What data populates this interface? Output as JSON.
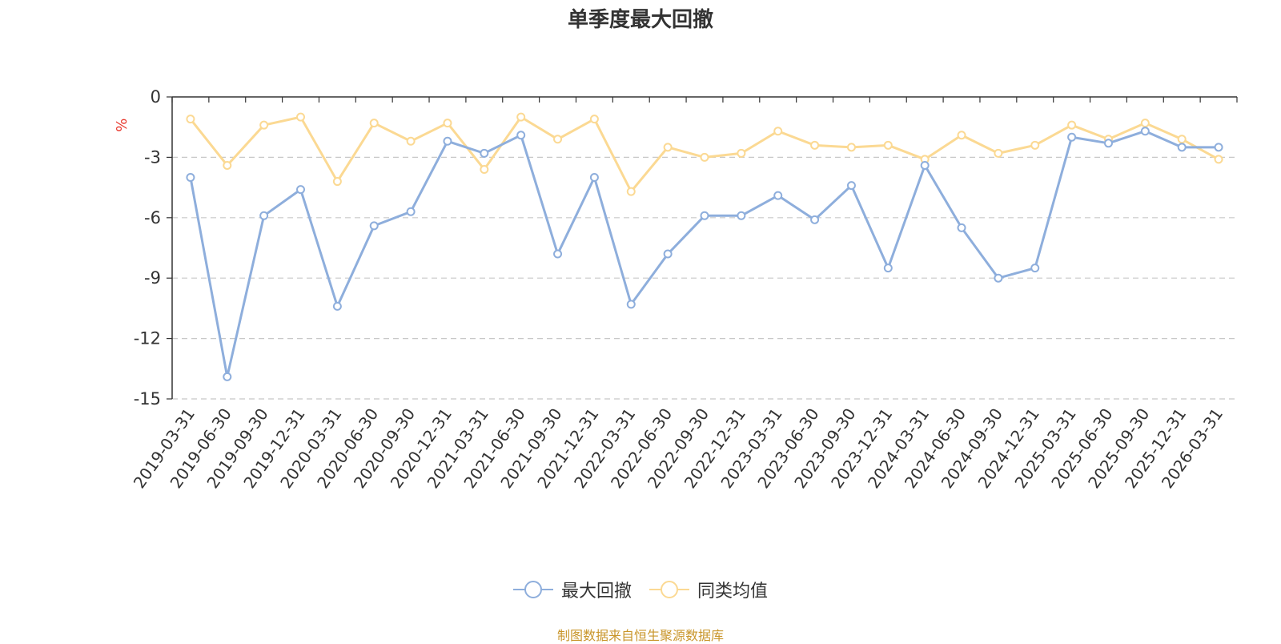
{
  "colors": {
    "series1": "#8eaedc",
    "series2": "#fbd993",
    "unit": "#e8372c",
    "source": "#c9962b"
  },
  "chart_data": {
    "type": "line",
    "title": "单季度最大回撤",
    "ylabel": "%",
    "ylim": [
      -15,
      0
    ],
    "yticks": [
      0,
      -3,
      -6,
      -9,
      -12,
      -15
    ],
    "grid": true,
    "legend_position": "bottom-center",
    "x": [
      "2019-03-31",
      "2019-06-30",
      "2019-09-30",
      "2019-12-31",
      "2020-03-31",
      "2020-06-30",
      "2020-09-30",
      "2020-12-31",
      "2021-03-31",
      "2021-06-30",
      "2021-09-30",
      "2021-12-31",
      "2022-03-31",
      "2022-06-30",
      "2022-09-30",
      "2022-12-31",
      "2023-03-31",
      "2023-06-30",
      "2023-09-30",
      "2023-12-31",
      "2024-03-31",
      "2024-06-30",
      "2024-09-30",
      "2024-12-31",
      "2025-03-31",
      "2025-06-30",
      "2025-09-30",
      "2025-12-31",
      "2026-03-31"
    ],
    "series": [
      {
        "name": "最大回撤",
        "values": [
          -4.0,
          -13.9,
          -5.9,
          -4.6,
          -10.4,
          -6.4,
          -5.7,
          -2.2,
          -2.8,
          -1.9,
          -7.8,
          -4.0,
          -10.3,
          -7.8,
          -5.9,
          -5.9,
          -4.9,
          -6.1,
          -4.4,
          -8.5,
          -3.4,
          -6.5,
          -9.0,
          -8.5,
          -2.0,
          -2.3,
          -1.7,
          -2.5,
          -2.5
        ]
      },
      {
        "name": "同类均值",
        "values": [
          -1.1,
          -3.4,
          -1.4,
          -1.0,
          -4.2,
          -1.3,
          -2.2,
          -1.3,
          -3.6,
          -1.0,
          -2.1,
          -1.1,
          -4.7,
          -2.5,
          -3.0,
          -2.8,
          -1.7,
          -2.4,
          -2.5,
          -2.4,
          -3.1,
          -1.9,
          -2.8,
          -2.4,
          -1.4,
          -2.1,
          -1.3,
          -2.1,
          -3.1
        ]
      }
    ]
  },
  "source_text": "制图数据来自恒生聚源数据库"
}
